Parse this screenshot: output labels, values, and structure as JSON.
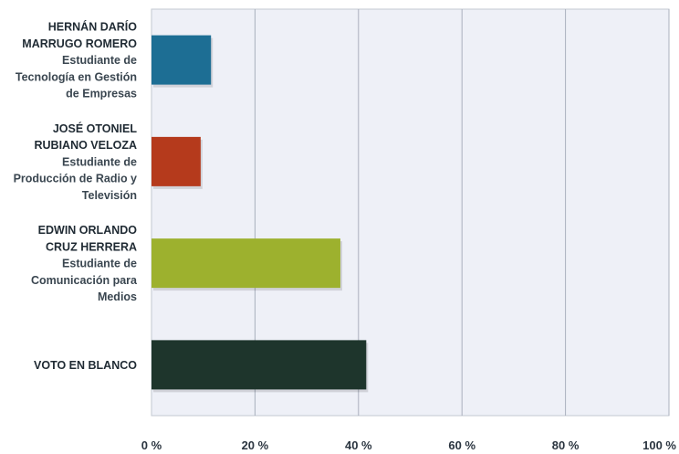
{
  "chart_data": {
    "type": "bar",
    "orientation": "horizontal",
    "title": "",
    "xlabel": "",
    "ylabel": "",
    "xlim": [
      0,
      100
    ],
    "grid": true,
    "legend": "none",
    "categories": [
      {
        "name_lines": [
          "HERNÁN DARÍO",
          "MARRUGO ROMERO"
        ],
        "detail_lines": [
          "Estudiante de",
          "Tecnología en Gestión",
          "de Empresas"
        ],
        "value": 11.5,
        "color": "#1d6e94"
      },
      {
        "name_lines": [
          "JOSÉ OTONIEL",
          "RUBIANO VELOZA"
        ],
        "detail_lines": [
          "Estudiante de",
          "Producción de Radio y",
          "Televisión"
        ],
        "value": 9.5,
        "color": "#b53a1c"
      },
      {
        "name_lines": [
          "EDWIN ORLANDO",
          "CRUZ HERRERA"
        ],
        "detail_lines": [
          "Estudiante de",
          "Comunicación para",
          "Medios"
        ],
        "value": 36.5,
        "color": "#9db12e"
      },
      {
        "name_lines": [
          "VOTO EN BLANCO"
        ],
        "detail_lines": [],
        "value": 41.5,
        "color": "#1e352c"
      }
    ],
    "ticks": [
      {
        "value": 0,
        "label": "0 %"
      },
      {
        "value": 20,
        "label": "20 %"
      },
      {
        "value": 40,
        "label": "40 %"
      },
      {
        "value": 60,
        "label": "60 %"
      },
      {
        "value": 80,
        "label": "80 %"
      },
      {
        "value": 100,
        "label": "100 %"
      }
    ],
    "colors": {
      "plot_background": "#eef0f7",
      "gridline": "#a9afbd",
      "frame": "#c3c8d2"
    }
  }
}
